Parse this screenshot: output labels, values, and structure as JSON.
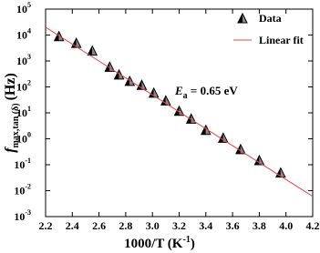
{
  "chart_data": {
    "type": "scatter",
    "xlabel": "1000/T (K",
    "xlabel_sup": "-1",
    "xlabel_end": ")",
    "ylabel": "f",
    "ylabel_sub": "max,tan (δ)",
    "ylabel_unit": "(Hz)",
    "annotation": "E",
    "annotation_sub": "a",
    "annotation_text": " = 0.65 eV",
    "xlim": [
      2.2,
      4.2
    ],
    "xticks": [
      2.2,
      2.4,
      2.6,
      2.8,
      3.0,
      3.2,
      3.4,
      3.6,
      3.8,
      4.0,
      4.2
    ],
    "ylim": [
      0.001,
      100000
    ],
    "ylog": true,
    "yticks": [
      {
        "value": 0.001,
        "label": "10",
        "exponent": "-3"
      },
      {
        "value": 0.01,
        "label": "10",
        "exponent": "-2"
      },
      {
        "value": 0.1,
        "label": "10",
        "exponent": "-1"
      },
      {
        "value": 1,
        "label": "10",
        "exponent": "0"
      },
      {
        "value": 10,
        "label": "10",
        "exponent": "1"
      },
      {
        "value": 100,
        "label": "10",
        "exponent": "2"
      },
      {
        "value": 1000,
        "label": "10",
        "exponent": "3"
      },
      {
        "value": 10000,
        "label": "10",
        "exponent": "4"
      },
      {
        "value": 100000,
        "label": "10",
        "exponent": "5"
      }
    ],
    "series": [
      {
        "name": "Data",
        "type": "scatter",
        "color": "#000000",
        "x": [
          2.3,
          2.43,
          2.55,
          2.68,
          2.75,
          2.83,
          2.92,
          3.01,
          3.1,
          3.2,
          3.29,
          3.4,
          3.53,
          3.66,
          3.8,
          3.96
        ],
        "values": [
          9000,
          5000,
          2500,
          600,
          300,
          170,
          120,
          60,
          30,
          12,
          6,
          2.2,
          1.1,
          0.4,
          0.15,
          0.05
        ]
      },
      {
        "name": "Linear fit",
        "type": "line",
        "color": "#e8474a",
        "x": [
          2.2,
          4.2
        ],
        "values": [
          20000,
          0.006
        ]
      }
    ]
  }
}
